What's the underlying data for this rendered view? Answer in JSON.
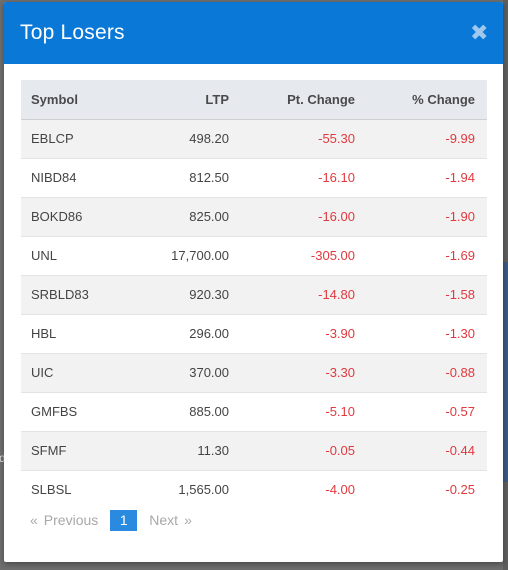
{
  "modal": {
    "title": "Top Losers",
    "close_glyph": "✖"
  },
  "table": {
    "headers": [
      "Symbol",
      "LTP",
      "Pt. Change",
      "% Change"
    ],
    "rows": [
      {
        "symbol": "EBLCP",
        "ltp": "498.20",
        "pt_change": "-55.30",
        "pct_change": "-9.99"
      },
      {
        "symbol": "NIBD84",
        "ltp": "812.50",
        "pt_change": "-16.10",
        "pct_change": "-1.94"
      },
      {
        "symbol": "BOKD86",
        "ltp": "825.00",
        "pt_change": "-16.00",
        "pct_change": "-1.90"
      },
      {
        "symbol": "UNL",
        "ltp": "17,700.00",
        "pt_change": "-305.00",
        "pct_change": "-1.69"
      },
      {
        "symbol": "SRBLD83",
        "ltp": "920.30",
        "pt_change": "-14.80",
        "pct_change": "-1.58"
      },
      {
        "symbol": "HBL",
        "ltp": "296.00",
        "pt_change": "-3.90",
        "pct_change": "-1.30"
      },
      {
        "symbol": "UIC",
        "ltp": "370.00",
        "pt_change": "-3.30",
        "pct_change": "-0.88"
      },
      {
        "symbol": "GMFBS",
        "ltp": "885.00",
        "pt_change": "-5.10",
        "pct_change": "-0.57"
      },
      {
        "symbol": "SFMF",
        "ltp": "11.30",
        "pt_change": "-0.05",
        "pct_change": "-0.44"
      },
      {
        "symbol": "SLBSL",
        "ltp": "1,565.00",
        "pt_change": "-4.00",
        "pct_change": "-0.25"
      }
    ]
  },
  "pagination": {
    "prev_glyph": "«",
    "prev_label": "Previous",
    "current_page": "1",
    "next_label": "Next",
    "next_glyph": "»"
  },
  "backdrop": {
    "left_edge_text": "d"
  },
  "colors": {
    "header_bg": "#0a78d7",
    "negative": "#e0393e",
    "active_page": "#2a8ae0"
  }
}
